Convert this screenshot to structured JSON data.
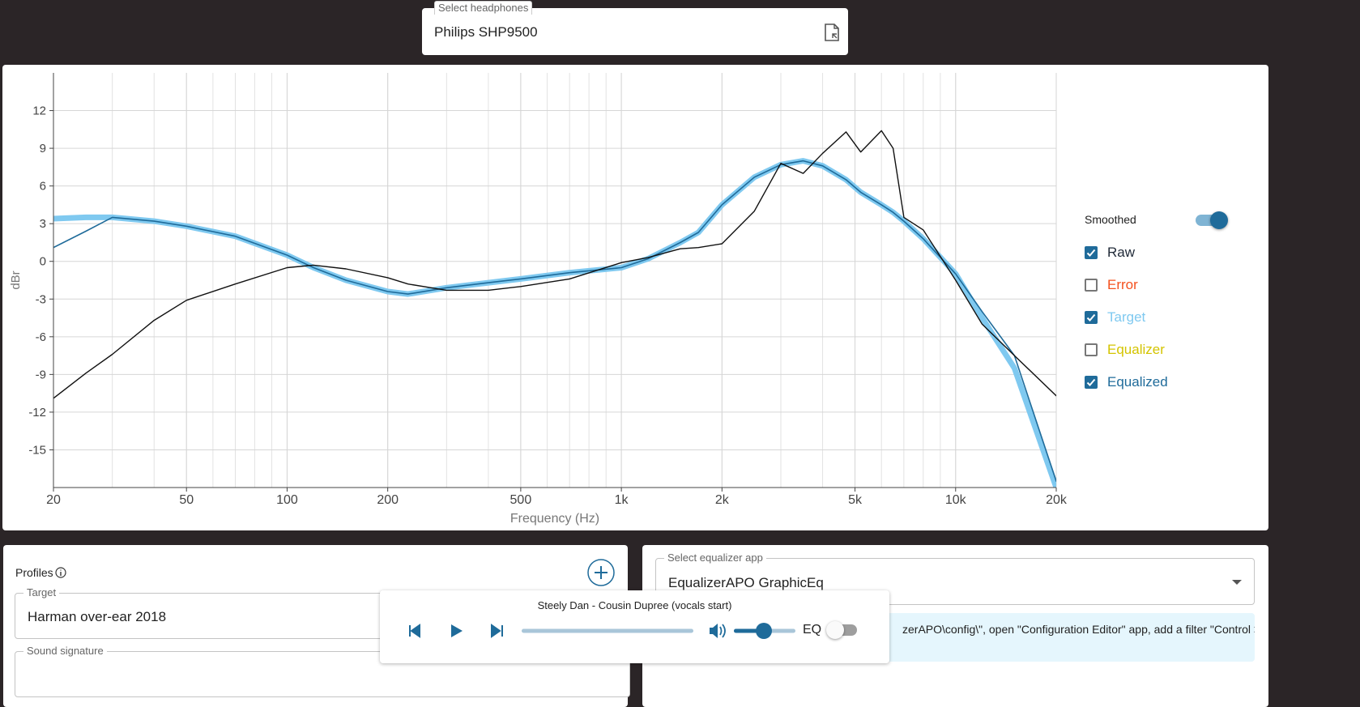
{
  "header": {
    "headphones_label": "Select headphones",
    "headphones": "Philips SHP9500"
  },
  "chart_data": {
    "type": "line",
    "x_label": "Frequency (Hz)",
    "y_label": "dBr",
    "log_x": true,
    "grid": true,
    "xlim": [
      20,
      20000
    ],
    "ylim": [
      -18,
      15
    ],
    "xticks": [
      20,
      50,
      100,
      200,
      500,
      {
        "value": 1000,
        "label": "1k"
      },
      {
        "value": 2000,
        "label": "2k"
      },
      {
        "value": 5000,
        "label": "5k"
      },
      {
        "value": 10000,
        "label": "10k"
      },
      {
        "value": 20000,
        "label": "20k"
      }
    ],
    "yticks": [
      12,
      9,
      6,
      3,
      0,
      -3,
      -6,
      -9,
      -12,
      -15
    ],
    "x": [
      20,
      25,
      30,
      40,
      50,
      70,
      100,
      120,
      150,
      200,
      230,
      300,
      400,
      500,
      700,
      1000,
      1200,
      1500,
      1700,
      2000,
      2500,
      3000,
      3500,
      4000,
      4700,
      5200,
      6000,
      6500,
      7000,
      8000,
      10000,
      12000,
      15000,
      20000
    ],
    "series": [
      {
        "name": "Target",
        "color": "#7fc9f0",
        "values": [
          3.4,
          3.5,
          3.5,
          3.2,
          2.8,
          2.0,
          0.5,
          -0.5,
          -1.5,
          -2.4,
          -2.6,
          -2.1,
          -1.7,
          -1.4,
          -0.9,
          -0.5,
          0.2,
          1.5,
          2.3,
          4.5,
          6.7,
          7.7,
          8.0,
          7.6,
          6.5,
          5.5,
          4.5,
          3.9,
          3.2,
          1.8,
          -1.0,
          -4.5,
          -8.5,
          -18
        ]
      },
      {
        "name": "Equalized",
        "color": "#1f6b9a",
        "values": [
          1.1,
          2.4,
          3.5,
          3.2,
          2.8,
          2.0,
          0.5,
          -0.5,
          -1.5,
          -2.4,
          -2.6,
          -2.1,
          -1.7,
          -1.4,
          -0.9,
          -0.5,
          0.2,
          1.5,
          2.3,
          4.5,
          6.7,
          7.7,
          8.0,
          7.6,
          6.5,
          5.5,
          4.5,
          3.9,
          3.2,
          1.8,
          -1.0,
          -4.0,
          -7.5,
          -17.5
        ]
      },
      {
        "name": "Raw",
        "color": "#111111",
        "values": [
          -10.9,
          -8.9,
          -7.4,
          -4.7,
          -3.1,
          -1.8,
          -0.5,
          -0.3,
          -0.6,
          -1.3,
          -1.8,
          -2.3,
          -2.3,
          -2.0,
          -1.4,
          -0.1,
          0.3,
          1.0,
          1.1,
          1.4,
          4.0,
          7.8,
          7.0,
          8.6,
          10.3,
          8.7,
          10.4,
          9.0,
          3.5,
          2.5,
          -1.5,
          -5.0,
          -7.5,
          -10.7
        ]
      }
    ]
  },
  "controls": {
    "smoothed": {
      "label": "Smoothed",
      "on": true
    },
    "toggles": [
      {
        "label": "Raw",
        "checked": true,
        "color": "#1f2937"
      },
      {
        "label": "Error",
        "checked": false,
        "color": "#f4511e"
      },
      {
        "label": "Target",
        "checked": true,
        "color": "#7fc9f0"
      },
      {
        "label": "Equalizer",
        "checked": false,
        "color": "#d4c400"
      },
      {
        "label": "Equalized",
        "checked": true,
        "color": "#1f6b9a"
      }
    ]
  },
  "profiles": {
    "title": "Profiles",
    "target_label": "Target",
    "target": "Harman over-ear 2018",
    "signature_label": "Sound signature"
  },
  "equalizer": {
    "label": "Select equalizer app",
    "app": "EqualizerAPO GraphicEq",
    "info": "zerAPO\\config\\\", open \"Configuration Editor\" app, add a filter \"Control >"
  },
  "player": {
    "track": "Steely Dan - Cousin Dupree (vocals start)",
    "eq_label": "EQ",
    "eq_on": false
  }
}
